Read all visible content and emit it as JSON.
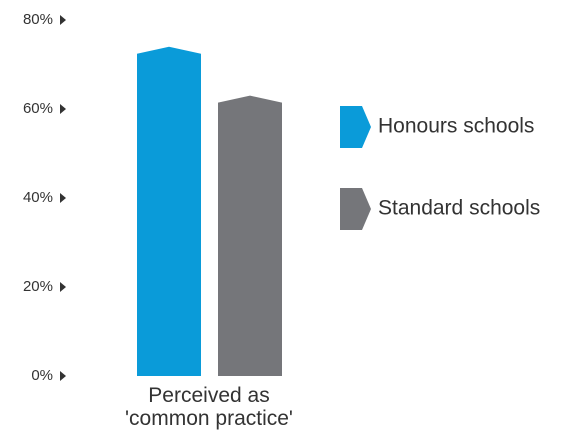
{
  "chart_data": {
    "type": "bar",
    "categories": [
      "Perceived as 'common practice'"
    ],
    "series": [
      {
        "name": "Honours schools",
        "color": "#0a9bd9",
        "values": [
          74
        ]
      },
      {
        "name": "Standard schools",
        "color": "#75767a",
        "values": [
          63
        ]
      }
    ],
    "ylim": [
      0,
      80
    ],
    "yticks": [
      {
        "value": 0,
        "label": "0%"
      },
      {
        "value": 20,
        "label": "20%"
      },
      {
        "value": 40,
        "label": "40%"
      },
      {
        "value": 60,
        "label": "60%"
      },
      {
        "value": 80,
        "label": "80%"
      }
    ],
    "legend": "right"
  }
}
